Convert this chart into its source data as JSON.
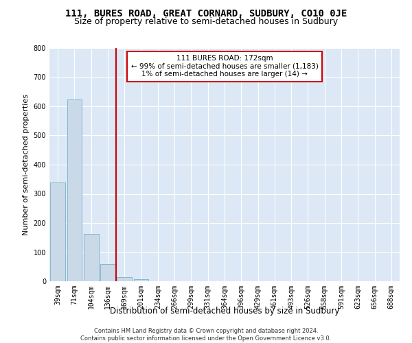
{
  "title": "111, BURES ROAD, GREAT CORNARD, SUDBURY, CO10 0JE",
  "subtitle": "Size of property relative to semi-detached houses in Sudbury",
  "xlabel": "Distribution of semi-detached houses by size in Sudbury",
  "ylabel": "Number of semi-detached properties",
  "categories": [
    "39sqm",
    "71sqm",
    "104sqm",
    "136sqm",
    "169sqm",
    "201sqm",
    "234sqm",
    "266sqm",
    "299sqm",
    "331sqm",
    "364sqm",
    "396sqm",
    "429sqm",
    "461sqm",
    "493sqm",
    "526sqm",
    "558sqm",
    "591sqm",
    "623sqm",
    "656sqm",
    "688sqm"
  ],
  "values": [
    338,
    624,
    163,
    58,
    15,
    8,
    0,
    0,
    0,
    0,
    0,
    0,
    0,
    0,
    0,
    0,
    0,
    0,
    0,
    0,
    0
  ],
  "bar_color": "#c9d9e8",
  "bar_edge_color": "#7aafc8",
  "vline_x": 3.5,
  "vline_color": "#cc0000",
  "annotation_text": "111 BURES ROAD: 172sqm\n← 99% of semi-detached houses are smaller (1,183)\n1% of semi-detached houses are larger (14) →",
  "annotation_box_color": "#ffffff",
  "annotation_box_edge": "#cc0000",
  "ylim": [
    0,
    800
  ],
  "yticks": [
    0,
    100,
    200,
    300,
    400,
    500,
    600,
    700,
    800
  ],
  "footer_text": "Contains HM Land Registry data © Crown copyright and database right 2024.\nContains public sector information licensed under the Open Government Licence v3.0.",
  "plot_bg_color": "#dce8f5",
  "grid_color": "#ffffff",
  "title_fontsize": 10,
  "subtitle_fontsize": 9,
  "tick_fontsize": 7,
  "ylabel_fontsize": 8,
  "xlabel_fontsize": 8.5,
  "annotation_fontsize": 7.5
}
